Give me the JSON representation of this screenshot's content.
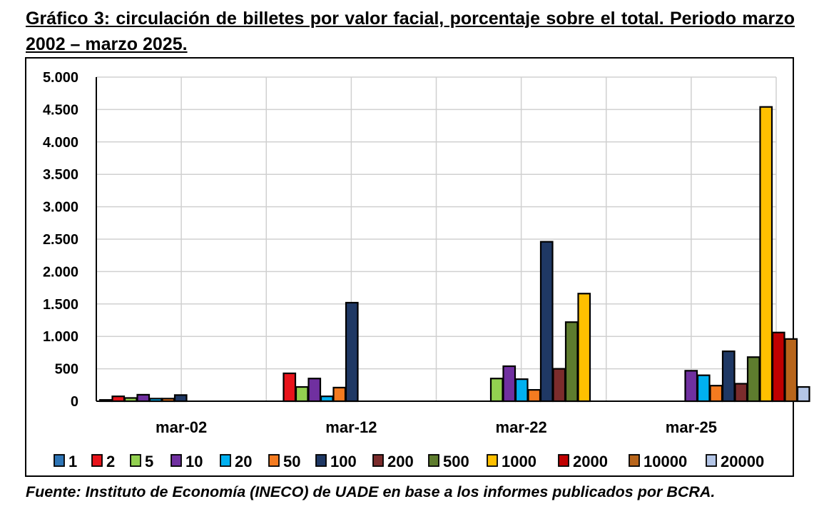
{
  "title": "Gráfico 3: circulación de billetes por valor facial, porcentaje sobre el total. Periodo marzo 2002 – marzo 2025.",
  "source": "Fuente: Instituto de Economía (INECO) de UADE en base a los informes publicados por BCRA.",
  "chart_data": {
    "type": "bar",
    "title": "Gráfico 3: circulación de billetes por valor facial, porcentaje sobre el total. Periodo marzo 2002 – marzo 2025.",
    "xlabel": "",
    "ylabel": "",
    "ylim": [
      0,
      5000
    ],
    "y_ticks": [
      0,
      500,
      1000,
      1500,
      2000,
      2500,
      3000,
      3500,
      4000,
      4500,
      5000
    ],
    "y_tick_labels": [
      "0",
      "500",
      "1.000",
      "1.500",
      "2.000",
      "2.500",
      "3.000",
      "3.500",
      "4.000",
      "4.500",
      "5.000"
    ],
    "grid": true,
    "legend_position": "bottom",
    "categories": [
      "mar-02",
      "mar-12",
      "mar-22",
      "mar-25"
    ],
    "series": [
      {
        "name": "1",
        "color": "#2e75b6",
        "values": [
          20,
          0,
          0,
          0
        ]
      },
      {
        "name": "2",
        "color": "#e8141b",
        "values": [
          75,
          430,
          0,
          0
        ]
      },
      {
        "name": "5",
        "color": "#92d050",
        "values": [
          50,
          220,
          350,
          0
        ]
      },
      {
        "name": "10",
        "color": "#7030a0",
        "values": [
          100,
          350,
          540,
          470
        ]
      },
      {
        "name": "20",
        "color": "#00b0f0",
        "values": [
          40,
          75,
          340,
          400
        ]
      },
      {
        "name": "50",
        "color": "#f47b20",
        "values": [
          40,
          210,
          175,
          240
        ]
      },
      {
        "name": "100",
        "color": "#1f3864",
        "values": [
          95,
          1520,
          2460,
          770
        ]
      },
      {
        "name": "200",
        "color": "#7b2c2c",
        "values": [
          0,
          0,
          500,
          270
        ]
      },
      {
        "name": "500",
        "color": "#5e7c2e",
        "values": [
          0,
          0,
          1220,
          680
        ]
      },
      {
        "name": "1000",
        "color": "#ffc000",
        "values": [
          0,
          0,
          1660,
          4540
        ]
      },
      {
        "name": "2000",
        "color": "#c00000",
        "values": [
          0,
          0,
          0,
          1060
        ]
      },
      {
        "name": "10000",
        "color": "#b8651b",
        "values": [
          0,
          0,
          0,
          960
        ]
      },
      {
        "name": "20000",
        "color": "#b4c6e7",
        "values": [
          0,
          0,
          0,
          220
        ]
      }
    ]
  }
}
